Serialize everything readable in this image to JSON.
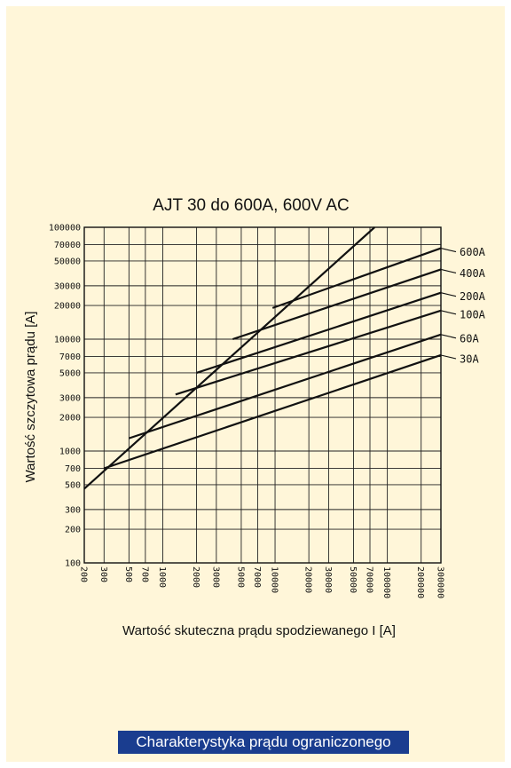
{
  "chart_data": {
    "type": "line",
    "title": "AJT 30 do 600A, 600V AC",
    "xlabel": "Wartość skuteczna prądu spodziewanego I [A]",
    "ylabel": "Wartość szczytowa prądu [A]",
    "xscale": "log",
    "yscale": "log",
    "xlim": [
      200,
      300000
    ],
    "ylim": [
      100,
      100000
    ],
    "grid": true,
    "x_tick_labels": [
      "200",
      "300",
      "500",
      "700",
      "1000",
      "2000",
      "3000",
      "5000",
      "7000",
      "10000",
      "20000",
      "30000",
      "50000",
      "70000",
      "100000",
      "200000",
      "300000"
    ],
    "y_tick_labels": [
      "100000",
      "70000",
      "50000",
      "30000",
      "20000",
      "10000",
      "7000",
      "5000",
      "3000",
      "2000",
      "1000",
      "700",
      "500",
      "300",
      "200",
      "100"
    ],
    "reference_line": {
      "name": "",
      "points": [
        [
          200,
          460
        ],
        [
          77000,
          100000
        ]
      ]
    },
    "series": [
      {
        "name": "600A",
        "points": [
          [
            9500,
            19000
          ],
          [
            300000,
            65000
          ]
        ]
      },
      {
        "name": "400A",
        "points": [
          [
            4200,
            10000
          ],
          [
            300000,
            42000
          ]
        ]
      },
      {
        "name": "200A",
        "points": [
          [
            2000,
            5000
          ],
          [
            300000,
            26000
          ]
        ]
      },
      {
        "name": "100A",
        "points": [
          [
            1300,
            3200
          ],
          [
            300000,
            18000
          ]
        ]
      },
      {
        "name": "60A",
        "points": [
          [
            500,
            1300
          ],
          [
            300000,
            11000
          ]
        ]
      },
      {
        "name": "30A",
        "points": [
          [
            300,
            700
          ],
          [
            300000,
            7200
          ]
        ]
      }
    ]
  },
  "caption": "Charakterystyka prądu ograniczonego"
}
